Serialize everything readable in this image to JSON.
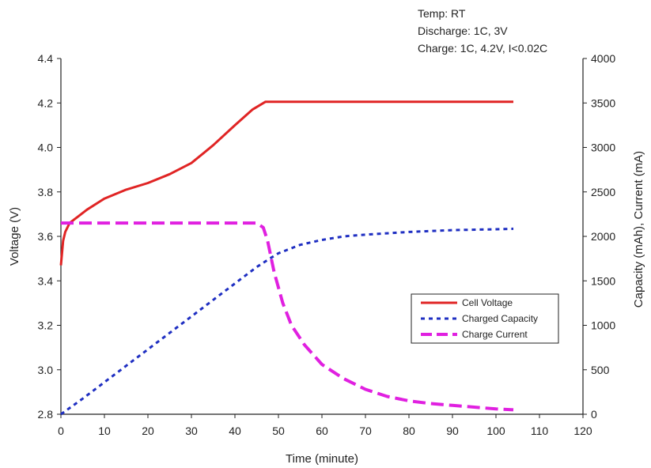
{
  "chart_data": {
    "type": "line",
    "title": "",
    "annotations": [
      "Temp: RT",
      "Discharge: 1C, 3V",
      "Charge: 1C, 4.2V, I<0.02C"
    ],
    "xlabel": "Time (minute)",
    "ylabel_left": "Voltage (V)",
    "ylabel_right": "Capacity (mAh), Current (mA)",
    "xlim": [
      0,
      120
    ],
    "ylim_left": [
      2.8,
      4.4
    ],
    "ylim_right": [
      0,
      4000
    ],
    "x_ticks": [
      "0",
      "10",
      "20",
      "30",
      "40",
      "50",
      "60",
      "70",
      "80",
      "90",
      "100",
      "110",
      "120"
    ],
    "y_left_ticks": [
      "2.8",
      "3.0",
      "3.2",
      "3.4",
      "3.6",
      "3.8",
      "4.0",
      "4.2",
      "4.4"
    ],
    "y_right_ticks": [
      "0",
      "500",
      "1000",
      "1500",
      "2000",
      "2500",
      "3000",
      "3500",
      "4000"
    ],
    "grid": false,
    "legend_position": "lower-right",
    "colors": {
      "voltage": "#e02424",
      "capacity": "#1f2fc2",
      "current": "#e020e0"
    },
    "series": [
      {
        "name": "Cell Voltage",
        "axis": "left",
        "style": "solid",
        "x": [
          0,
          0.5,
          1,
          2,
          4,
          6,
          10,
          15,
          20,
          25,
          30,
          35,
          40,
          44,
          47,
          50,
          60,
          70,
          80,
          90,
          100,
          104
        ],
        "y": [
          3.47,
          3.58,
          3.62,
          3.66,
          3.69,
          3.72,
          3.77,
          3.81,
          3.84,
          3.88,
          3.93,
          4.01,
          4.1,
          4.17,
          4.205,
          4.205,
          4.205,
          4.205,
          4.205,
          4.205,
          4.205,
          4.205
        ]
      },
      {
        "name": "Charged Capacity",
        "axis": "right",
        "style": "dotted",
        "x": [
          0,
          5,
          10,
          15,
          20,
          25,
          30,
          35,
          40,
          45,
          48,
          50,
          55,
          60,
          65,
          70,
          80,
          90,
          100,
          104
        ],
        "y": [
          0,
          175,
          360,
          545,
          730,
          915,
          1100,
          1285,
          1470,
          1655,
          1750,
          1810,
          1905,
          1960,
          2000,
          2020,
          2050,
          2070,
          2080,
          2085
        ]
      },
      {
        "name": "Charge Current",
        "axis": "right",
        "style": "dashed",
        "x": [
          0,
          10,
          20,
          30,
          40,
          45,
          46.5,
          47.5,
          49,
          51,
          53,
          56,
          60,
          65,
          70,
          75,
          80,
          85,
          90,
          95,
          100,
          104
        ],
        "y": [
          2150,
          2150,
          2150,
          2150,
          2150,
          2150,
          2100,
          1950,
          1600,
          1250,
          1000,
          780,
          560,
          400,
          280,
          200,
          150,
          120,
          100,
          80,
          60,
          50
        ]
      }
    ]
  }
}
